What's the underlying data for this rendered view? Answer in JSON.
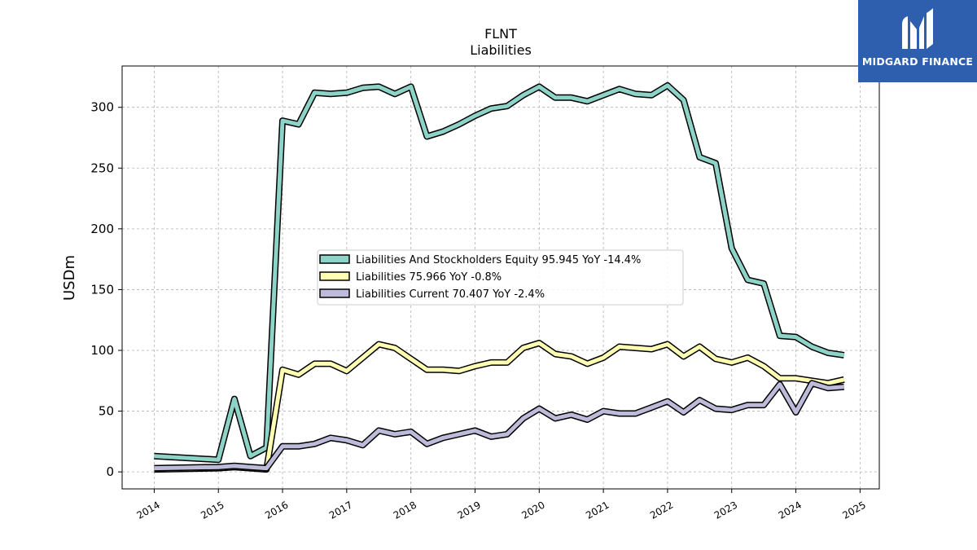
{
  "logo": {
    "name": "MIDGARD FINANCE",
    "icon": "mf-monogram-icon",
    "color": "#2d5fae"
  },
  "chart_data": {
    "type": "line",
    "title": "FLNT",
    "subtitle": "Liabilities",
    "ylabel": "USDm",
    "xlabel": "",
    "xlim": [
      2013.5,
      2025.3
    ],
    "ylim": [
      -14,
      334
    ],
    "xticks": [
      2014,
      2015,
      2016,
      2017,
      2018,
      2019,
      2020,
      2021,
      2022,
      2023,
      2024,
      2025
    ],
    "xtick_labels": [
      "2014",
      "2015",
      "2016",
      "2017",
      "2018",
      "2019",
      "2020",
      "2021",
      "2022",
      "2023",
      "2024",
      "2025"
    ],
    "yticks": [
      0,
      50,
      100,
      150,
      200,
      250,
      300
    ],
    "ytick_labels": [
      "0",
      "50",
      "100",
      "150",
      "200",
      "250",
      "300"
    ],
    "grid": true,
    "legend_position": "center",
    "x": [
      2014.0,
      2015.0,
      2015.25,
      2015.5,
      2015.75,
      2016.0,
      2016.25,
      2016.5,
      2016.75,
      2017.0,
      2017.25,
      2017.5,
      2017.75,
      2018.0,
      2018.25,
      2018.5,
      2018.75,
      2019.0,
      2019.25,
      2019.5,
      2019.75,
      2020.0,
      2020.25,
      2020.5,
      2020.75,
      2021.0,
      2021.25,
      2021.5,
      2021.75,
      2022.0,
      2022.25,
      2022.5,
      2022.75,
      2023.0,
      2023.25,
      2023.5,
      2023.75,
      2024.0,
      2024.25,
      2024.5,
      2024.75
    ],
    "series": [
      {
        "name": "Liabilities And Stockholders Equity  95.945 YoY -14.4%",
        "color": "#8dd3c7",
        "values": [
          13,
          10,
          60,
          13,
          20,
          289,
          286,
          312,
          311,
          312,
          316,
          317,
          311,
          317,
          276,
          280,
          286,
          293,
          299,
          301,
          310,
          317,
          308,
          308,
          305,
          310,
          315,
          311,
          310,
          318,
          306,
          259,
          254,
          184,
          158,
          155,
          112,
          111,
          103,
          98,
          96
        ]
      },
      {
        "name": "Liabilities  75.966 YoY -0.8%",
        "color": "#ffffb3",
        "values": [
          2,
          3,
          4,
          3,
          2,
          84,
          80,
          89,
          89,
          83,
          94,
          105,
          102,
          93,
          84,
          84,
          83,
          87,
          90,
          90,
          102,
          106,
          97,
          95,
          89,
          94,
          103,
          102,
          101,
          105,
          95,
          103,
          93,
          90,
          94,
          87,
          77,
          77,
          75,
          73,
          76
        ]
      },
      {
        "name": "Liabilities Current  70.407 YoY -2.4%",
        "color": "#bebada",
        "values": [
          3,
          4,
          5,
          4,
          3,
          21,
          21,
          23,
          28,
          26,
          22,
          34,
          31,
          33,
          23,
          28,
          31,
          34,
          29,
          31,
          44,
          52,
          44,
          47,
          43,
          50,
          48,
          48,
          53,
          58,
          49,
          59,
          52,
          51,
          55,
          55,
          72,
          49,
          73,
          69,
          70
        ]
      }
    ]
  }
}
